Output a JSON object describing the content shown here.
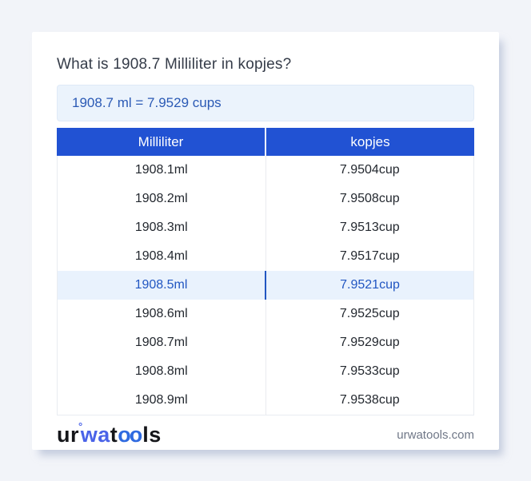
{
  "page": {
    "title": "What is 1908.7 Milliliter in kopjes?",
    "result": "1908.7 ml = 7.9529 cups"
  },
  "table": {
    "headers": [
      "Milliliter",
      "kopjes"
    ],
    "rows": [
      {
        "ml": "1908.1ml",
        "kopjes": "7.9504cup",
        "highlighted": false
      },
      {
        "ml": "1908.2ml",
        "kopjes": "7.9508cup",
        "highlighted": false
      },
      {
        "ml": "1908.3ml",
        "kopjes": "7.9513cup",
        "highlighted": false
      },
      {
        "ml": "1908.4ml",
        "kopjes": "7.9517cup",
        "highlighted": false
      },
      {
        "ml": "1908.5ml",
        "kopjes": "7.9521cup",
        "highlighted": true
      },
      {
        "ml": "1908.6ml",
        "kopjes": "7.9525cup",
        "highlighted": false
      },
      {
        "ml": "1908.7ml",
        "kopjes": "7.9529cup",
        "highlighted": false
      },
      {
        "ml": "1908.8ml",
        "kopjes": "7.9533cup",
        "highlighted": false
      },
      {
        "ml": "1908.9ml",
        "kopjes": "7.9538cup",
        "highlighted": false
      }
    ]
  },
  "footer": {
    "logo": {
      "seg1": "ur",
      "ring": "°",
      "seg2": "wa",
      "seg3": "t",
      "seg4": "oo",
      "seg5": "ls"
    },
    "domain": "urwatools.com"
  },
  "colors": {
    "page_bg": "#f2f4f9",
    "header_bg": "#2152d3",
    "header_text": "#ffffff",
    "result_bg": "#ebf3fc",
    "result_text": "#2b5ab5",
    "highlight_bg": "#e9f2fd",
    "highlight_text": "#2156c2",
    "body_text": "#23282f",
    "logo_blue": "#4a63e8",
    "domain_text": "#6f7787"
  }
}
